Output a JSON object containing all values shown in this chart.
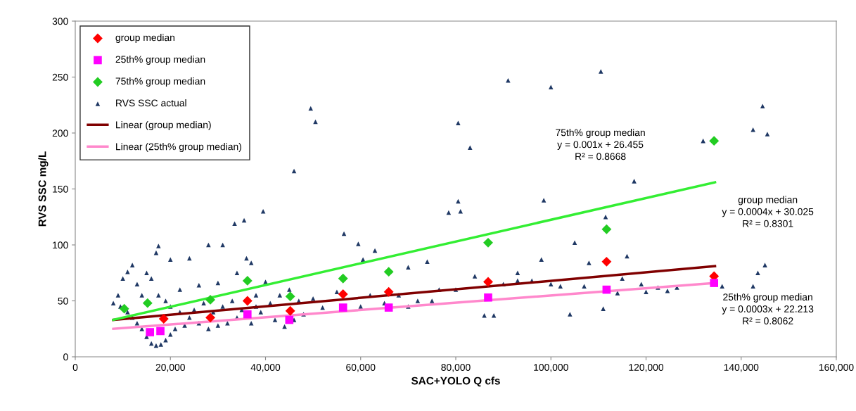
{
  "chart_data": {
    "type": "scatter",
    "xlabel": "SAC+YOLO Q cfs",
    "ylabel": "RVS SSC mg/L",
    "xlim": [
      0,
      160000
    ],
    "xticks": [
      0,
      {
        "value": 20000,
        "label": "20,000"
      },
      {
        "value": 40000,
        "label": "40,000"
      },
      {
        "value": 60000,
        "label": "60,000"
      },
      {
        "value": 80000,
        "label": "80,000"
      },
      {
        "value": 100000,
        "label": "100,000"
      },
      {
        "value": 120000,
        "label": "120,000"
      },
      {
        "value": 140000,
        "label": "140,000"
      },
      {
        "value": 160000,
        "label": "160,000"
      }
    ],
    "ylim": [
      0,
      300
    ],
    "yticks": [
      0,
      50,
      100,
      150,
      200,
      250,
      300
    ],
    "grid": false,
    "legend": "top left",
    "series": [
      {
        "name": "group median",
        "marker": "diamond",
        "color": "#ff0000",
        "x": [
          18600,
          28400,
          36200,
          45200,
          56300,
          65900,
          86800,
          111700,
          134300
        ],
        "values": [
          34,
          35,
          50,
          41,
          56,
          58,
          67,
          85,
          72
        ]
      },
      {
        "name": "25th% group median",
        "marker": "square",
        "color": "#ff00ff",
        "x": [
          15700,
          17900,
          36200,
          45000,
          56300,
          65900,
          86800,
          111700,
          134300
        ],
        "values": [
          22,
          23,
          38,
          33,
          44,
          44,
          53,
          60,
          66
        ]
      },
      {
        "name": "75th% group median",
        "marker": "diamond",
        "color": "#22cc22",
        "x": [
          10300,
          15200,
          28400,
          36200,
          45200,
          56300,
          65900,
          86800,
          111700,
          134300
        ],
        "values": [
          43,
          48,
          51,
          68,
          54,
          70,
          76,
          102,
          114,
          193
        ]
      },
      {
        "name": "RVS SSC actual",
        "marker": "triangle",
        "color": "#1f3864",
        "x": [
          49500,
          50500,
          46000,
          39500,
          35500,
          33500,
          91000,
          100000,
          110500,
          80500,
          80500,
          81000,
          78500,
          83000,
          98500,
          117500,
          132000,
          142500,
          144500,
          145500,
          145000,
          143500,
          142500,
          111500,
          111000,
          104000,
          20000,
          17500,
          17000,
          56500,
          59500,
          63000,
          60500,
          98000,
          108000,
          116000,
          115000,
          119000,
          120000,
          122500,
          124500,
          126500,
          114000,
          107000,
          102000,
          105000,
          96000,
          93000,
          88000,
          86000,
          93000,
          74000,
          70000,
          68000,
          72000,
          76500,
          52000,
          48000,
          46000,
          44000,
          42000,
          38000,
          38000,
          40000,
          31000,
          28000,
          24000,
          36000,
          37000,
          34000,
          30000,
          26000,
          22000,
          12000,
          11000,
          10000,
          13000,
          9000,
          8000,
          9500,
          11000,
          14000,
          15000,
          16000,
          17500,
          19000,
          20000,
          22000,
          24000,
          26000,
          28000,
          30000,
          32000,
          34000,
          12000,
          13000,
          14000,
          15000,
          16000,
          17000,
          18000,
          19000,
          20000,
          21000,
          23000,
          25000,
          27000,
          29000,
          31000,
          33000,
          35000,
          37000,
          39000,
          41000,
          43000,
          45000,
          47000,
          50000,
          55000,
          60000,
          62000,
          65000,
          70000,
          75000,
          80000,
          84000,
          90000,
          100000,
          136000
        ],
        "values": [
          222,
          210,
          166,
          130,
          122,
          119,
          247,
          241,
          255,
          209,
          139,
          130,
          129,
          187,
          140,
          157,
          193,
          203,
          224,
          199,
          82,
          75,
          63,
          125,
          43,
          38,
          87,
          99,
          93,
          110,
          101,
          95,
          87,
          87,
          84,
          90,
          70,
          65,
          58,
          62,
          59,
          62,
          57,
          63,
          63,
          102,
          68,
          68,
          37,
          37,
          75,
          85,
          80,
          55,
          50,
          60,
          44,
          38,
          33,
          27,
          33,
          45,
          55,
          67,
          100,
          100,
          88,
          88,
          84,
          75,
          66,
          64,
          60,
          82,
          76,
          70,
          65,
          55,
          48,
          45,
          40,
          55,
          75,
          70,
          55,
          50,
          45,
          40,
          35,
          30,
          25,
          28,
          30,
          35,
          35,
          30,
          25,
          18,
          12,
          10,
          11,
          15,
          20,
          25,
          28,
          42,
          48,
          40,
          45,
          50,
          42,
          30,
          40,
          48,
          55,
          60,
          50,
          52,
          58,
          45,
          55,
          48,
          45,
          50,
          60,
          72,
          65,
          65,
          63
        ]
      },
      {
        "name": "Linear (group median)",
        "type": "line",
        "line_style": "solid",
        "color": "#800000",
        "x": [
          8000,
          134500
        ],
        "values": [
          33,
          81
        ]
      },
      {
        "name": "Linear (25th% group median)",
        "type": "line",
        "line_style": "solid",
        "color": "#ff88cc",
        "x": [
          8000,
          134500
        ],
        "values": [
          25,
          66
        ]
      },
      {
        "type": "line",
        "line_style": "solid",
        "color": "#33ee33",
        "x": [
          8000,
          134500
        ],
        "values": [
          33,
          156
        ]
      }
    ],
    "annotations": [
      "75th% group median\ny = 0.001x + 26.455\nR² = 0.8668",
      "group median\ny = 0.0004x + 30.025\nR² = 0.8301",
      "25th% group median\ny = 0.0003x + 22.213\nR² = 0.8062"
    ]
  }
}
